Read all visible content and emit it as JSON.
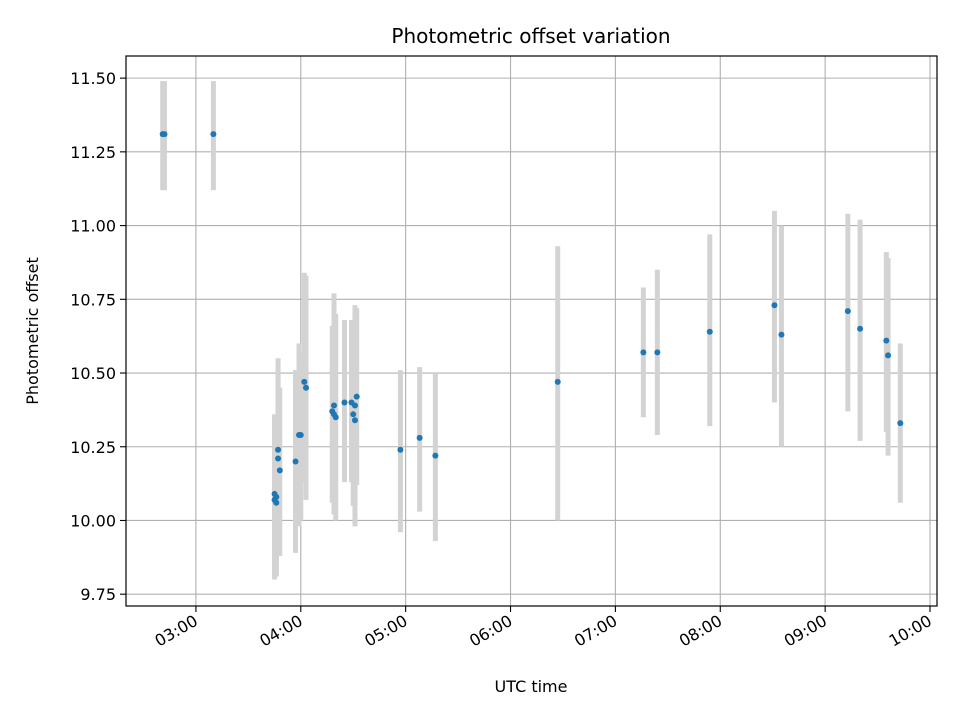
{
  "chart_data": {
    "type": "scatter",
    "title": "Photometric offset variation",
    "xlabel": "UTC time",
    "ylabel": "Photometric offset",
    "grid": true,
    "xlim": [
      "02:20",
      "10:04"
    ],
    "ylim": [
      9.71,
      11.575
    ],
    "xticks": [
      "03:00",
      "04:00",
      "05:00",
      "06:00",
      "07:00",
      "08:00",
      "09:00",
      "10:00"
    ],
    "yticks": [
      "9.75",
      "10.00",
      "10.25",
      "10.50",
      "10.75",
      "11.00",
      "11.25",
      "11.50"
    ],
    "colors": {
      "point": "#1f77b4",
      "errorbar": "#d3d3d3",
      "grid": "#b0b0b0"
    },
    "points": [
      {
        "x": "02:41",
        "y": 11.31,
        "lo": 11.12,
        "hi": 11.49
      },
      {
        "x": "02:42",
        "y": 11.31,
        "lo": 11.12,
        "hi": 11.49
      },
      {
        "x": "03:10",
        "y": 11.31,
        "lo": 11.12,
        "hi": 11.49
      },
      {
        "x": "03:45",
        "y": 10.09,
        "lo": 9.81,
        "hi": 10.36
      },
      {
        "x": "03:45",
        "y": 10.07,
        "lo": 9.8,
        "hi": 10.35
      },
      {
        "x": "03:46",
        "y": 10.08,
        "lo": 9.82,
        "hi": 10.33
      },
      {
        "x": "03:46",
        "y": 10.06,
        "lo": 9.81,
        "hi": 10.31
      },
      {
        "x": "03:47",
        "y": 10.21,
        "lo": 9.88,
        "hi": 10.55
      },
      {
        "x": "03:47",
        "y": 10.24,
        "lo": 9.95,
        "hi": 10.52
      },
      {
        "x": "03:48",
        "y": 10.17,
        "lo": 9.88,
        "hi": 10.45
      },
      {
        "x": "03:57",
        "y": 10.2,
        "lo": 9.89,
        "hi": 10.51
      },
      {
        "x": "03:59",
        "y": 10.29,
        "lo": 9.98,
        "hi": 10.6
      },
      {
        "x": "04:00",
        "y": 10.29,
        "lo": 10.0,
        "hi": 10.57
      },
      {
        "x": "04:02",
        "y": 10.47,
        "lo": 10.13,
        "hi": 10.84
      },
      {
        "x": "04:03",
        "y": 10.45,
        "lo": 10.07,
        "hi": 10.83
      },
      {
        "x": "04:18",
        "y": 10.37,
        "lo": 10.06,
        "hi": 10.66
      },
      {
        "x": "04:19",
        "y": 10.39,
        "lo": 10.02,
        "hi": 10.77
      },
      {
        "x": "04:19",
        "y": 10.36,
        "lo": 10.03,
        "hi": 10.72
      },
      {
        "x": "04:20",
        "y": 10.35,
        "lo": 10.0,
        "hi": 10.7
      },
      {
        "x": "04:25",
        "y": 10.4,
        "lo": 10.13,
        "hi": 10.68
      },
      {
        "x": "04:29",
        "y": 10.4,
        "lo": 10.13,
        "hi": 10.68
      },
      {
        "x": "04:30",
        "y": 10.36,
        "lo": 10.05,
        "hi": 10.67
      },
      {
        "x": "04:31",
        "y": 10.39,
        "lo": 10.05,
        "hi": 10.73
      },
      {
        "x": "04:31",
        "y": 10.34,
        "lo": 9.98,
        "hi": 10.7
      },
      {
        "x": "04:32",
        "y": 10.42,
        "lo": 10.12,
        "hi": 10.72
      },
      {
        "x": "04:57",
        "y": 10.24,
        "lo": 9.96,
        "hi": 10.51
      },
      {
        "x": "05:08",
        "y": 10.28,
        "lo": 10.03,
        "hi": 10.52
      },
      {
        "x": "05:17",
        "y": 10.22,
        "lo": 9.93,
        "hi": 10.5
      },
      {
        "x": "06:27",
        "y": 10.47,
        "lo": 10.0,
        "hi": 10.93
      },
      {
        "x": "07:16",
        "y": 10.57,
        "lo": 10.35,
        "hi": 10.79
      },
      {
        "x": "07:24",
        "y": 10.57,
        "lo": 10.29,
        "hi": 10.85
      },
      {
        "x": "07:54",
        "y": 10.64,
        "lo": 10.32,
        "hi": 10.97
      },
      {
        "x": "08:31",
        "y": 10.73,
        "lo": 10.4,
        "hi": 11.05
      },
      {
        "x": "08:35",
        "y": 10.63,
        "lo": 10.25,
        "hi": 11.0
      },
      {
        "x": "09:13",
        "y": 10.71,
        "lo": 10.37,
        "hi": 11.04
      },
      {
        "x": "09:20",
        "y": 10.65,
        "lo": 10.27,
        "hi": 11.02
      },
      {
        "x": "09:35",
        "y": 10.61,
        "lo": 10.3,
        "hi": 10.91
      },
      {
        "x": "09:36",
        "y": 10.56,
        "lo": 10.22,
        "hi": 10.89
      },
      {
        "x": "09:43",
        "y": 10.33,
        "lo": 10.06,
        "hi": 10.6
      }
    ]
  }
}
